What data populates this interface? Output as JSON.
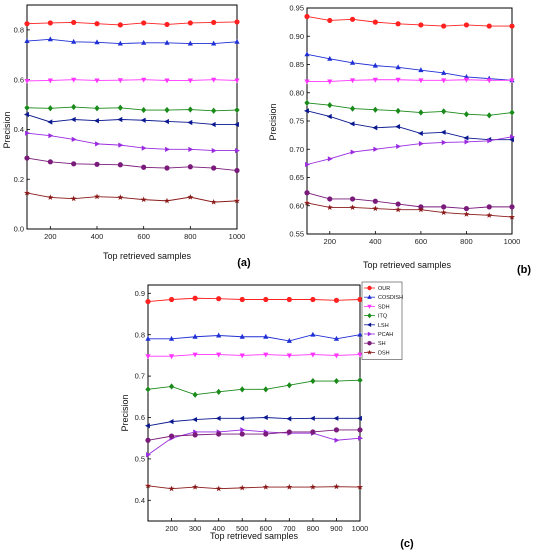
{
  "chart_data": [
    {
      "id": "a",
      "type": "line",
      "panel_label": "(a)",
      "xlabel": "Top retrieved samples",
      "ylabel": "Precision",
      "xlim": [
        100,
        1000
      ],
      "ylim": [
        0.0,
        0.9
      ],
      "x_ticks": [
        200,
        400,
        600,
        800,
        1000
      ],
      "y_ticks": [
        0.0,
        0.2,
        0.4,
        0.6,
        0.8
      ],
      "x_tick_labels": [
        "200",
        "400",
        "600",
        "800",
        "1000"
      ],
      "y_tick_labels": [
        "0.0",
        "0.2",
        "0.4",
        "0.6",
        "0.8"
      ],
      "x": [
        100,
        200,
        300,
        400,
        500,
        600,
        700,
        800,
        900,
        1000
      ],
      "series": [
        {
          "key": "OUR",
          "values": [
            0.825,
            0.828,
            0.83,
            0.825,
            0.82,
            0.828,
            0.822,
            0.828,
            0.83,
            0.832
          ]
        },
        {
          "key": "COSDISH",
          "values": [
            0.755,
            0.762,
            0.752,
            0.75,
            0.745,
            0.748,
            0.748,
            0.745,
            0.745,
            0.752
          ]
        },
        {
          "key": "SDH",
          "values": [
            0.595,
            0.597,
            0.6,
            0.597,
            0.598,
            0.6,
            0.597,
            0.597,
            0.6,
            0.597
          ]
        },
        {
          "key": "ITQ",
          "values": [
            0.487,
            0.485,
            0.49,
            0.485,
            0.487,
            0.478,
            0.478,
            0.48,
            0.475,
            0.478
          ]
        },
        {
          "key": "LSH",
          "values": [
            0.46,
            0.43,
            0.44,
            0.435,
            0.44,
            0.437,
            0.432,
            0.428,
            0.42,
            0.42
          ]
        },
        {
          "key": "PCAH",
          "values": [
            0.385,
            0.375,
            0.36,
            0.342,
            0.337,
            0.325,
            0.32,
            0.32,
            0.315,
            0.315
          ]
        },
        {
          "key": "SH",
          "values": [
            0.285,
            0.27,
            0.262,
            0.26,
            0.258,
            0.248,
            0.245,
            0.25,
            0.245,
            0.235
          ]
        },
        {
          "key": "DSH",
          "values": [
            0.145,
            0.127,
            0.122,
            0.13,
            0.127,
            0.118,
            0.113,
            0.128,
            0.108,
            0.113
          ]
        }
      ]
    },
    {
      "id": "b",
      "type": "line",
      "panel_label": "(b)",
      "xlabel": "Top retrieved samples",
      "ylabel": "Precision",
      "xlim": [
        100,
        1000
      ],
      "ylim": [
        0.55,
        0.95
      ],
      "x_ticks": [
        200,
        400,
        600,
        800,
        1000
      ],
      "y_ticks": [
        0.55,
        0.6,
        0.65,
        0.7,
        0.75,
        0.8,
        0.85,
        0.9,
        0.95
      ],
      "x_tick_labels": [
        "200",
        "400",
        "600",
        "800",
        "1000"
      ],
      "y_tick_labels": [
        "0.55",
        "0.60",
        "0.65",
        "0.70",
        "0.75",
        "0.80",
        "0.85",
        "0.90",
        "0.95"
      ],
      "x": [
        100,
        200,
        300,
        400,
        500,
        600,
        700,
        800,
        900,
        1000
      ],
      "series": [
        {
          "key": "OUR",
          "values": [
            0.935,
            0.928,
            0.93,
            0.925,
            0.922,
            0.92,
            0.918,
            0.92,
            0.918,
            0.918
          ]
        },
        {
          "key": "COSDISH",
          "values": [
            0.868,
            0.86,
            0.853,
            0.848,
            0.845,
            0.84,
            0.835,
            0.828,
            0.825,
            0.822
          ]
        },
        {
          "key": "SDH",
          "values": [
            0.82,
            0.82,
            0.822,
            0.823,
            0.823,
            0.822,
            0.822,
            0.823,
            0.822,
            0.822
          ]
        },
        {
          "key": "ITQ",
          "values": [
            0.782,
            0.778,
            0.772,
            0.77,
            0.768,
            0.765,
            0.767,
            0.762,
            0.76,
            0.765
          ]
        },
        {
          "key": "LSH",
          "values": [
            0.768,
            0.758,
            0.745,
            0.738,
            0.74,
            0.728,
            0.73,
            0.72,
            0.717,
            0.717
          ]
        },
        {
          "key": "PCAH",
          "values": [
            0.673,
            0.683,
            0.695,
            0.7,
            0.705,
            0.71,
            0.712,
            0.713,
            0.715,
            0.722
          ]
        },
        {
          "key": "SH",
          "values": [
            0.623,
            0.612,
            0.612,
            0.608,
            0.603,
            0.598,
            0.598,
            0.595,
            0.598,
            0.598
          ]
        },
        {
          "key": "DSH",
          "values": [
            0.605,
            0.597,
            0.597,
            0.595,
            0.593,
            0.593,
            0.588,
            0.585,
            0.583,
            0.58
          ]
        }
      ]
    },
    {
      "id": "c",
      "type": "line",
      "panel_label": "(c)",
      "xlabel": "Top retrieved samples",
      "ylabel": "Precision",
      "xlim": [
        100,
        1000
      ],
      "ylim": [
        0.35,
        0.92
      ],
      "x_ticks": [
        200,
        300,
        400,
        500,
        600,
        700,
        800,
        900,
        1000
      ],
      "y_ticks": [
        0.4,
        0.5,
        0.6,
        0.7,
        0.8,
        0.9
      ],
      "x_tick_labels": [
        "200",
        "300",
        "400",
        "500",
        "600",
        "700",
        "800",
        "900",
        "1000"
      ],
      "y_tick_labels": [
        "0.4",
        "0.5",
        "0.6",
        "0.7",
        "0.8",
        "0.9"
      ],
      "x": [
        100,
        200,
        300,
        400,
        500,
        600,
        700,
        800,
        900,
        1000
      ],
      "legend": {
        "placement": "top-right"
      },
      "series": [
        {
          "key": "OUR",
          "name": "OUR",
          "values": [
            0.88,
            0.885,
            0.888,
            0.887,
            0.885,
            0.885,
            0.885,
            0.885,
            0.883,
            0.885
          ]
        },
        {
          "key": "COSDISH",
          "name": "COSDISH",
          "values": [
            0.79,
            0.79,
            0.795,
            0.798,
            0.795,
            0.795,
            0.785,
            0.8,
            0.79,
            0.8
          ]
        },
        {
          "key": "SDH",
          "name": "SDH",
          "values": [
            0.748,
            0.748,
            0.752,
            0.752,
            0.75,
            0.752,
            0.75,
            0.752,
            0.75,
            0.752
          ]
        },
        {
          "key": "ITQ",
          "name": "ITQ",
          "values": [
            0.668,
            0.675,
            0.655,
            0.662,
            0.668,
            0.668,
            0.678,
            0.688,
            0.688,
            0.69
          ]
        },
        {
          "key": "LSH",
          "name": "LSH",
          "values": [
            0.58,
            0.59,
            0.595,
            0.598,
            0.598,
            0.6,
            0.597,
            0.598,
            0.598,
            0.598
          ]
        },
        {
          "key": "PCAH",
          "name": "PCAH",
          "values": [
            0.51,
            0.55,
            0.565,
            0.565,
            0.57,
            0.565,
            0.562,
            0.562,
            0.545,
            0.55
          ]
        },
        {
          "key": "SH",
          "name": "SH",
          "values": [
            0.545,
            0.555,
            0.558,
            0.56,
            0.56,
            0.56,
            0.565,
            0.565,
            0.57,
            0.57
          ]
        },
        {
          "key": "DSH",
          "name": "DSH",
          "values": [
            0.435,
            0.428,
            0.432,
            0.428,
            0.43,
            0.432,
            0.432,
            0.432,
            0.433,
            0.432
          ]
        }
      ]
    }
  ],
  "series_styles": {
    "OUR": {
      "color": "#ff2020",
      "marker": "circle"
    },
    "COSDISH": {
      "color": "#1f2fd6",
      "marker": "triangle-up"
    },
    "SDH": {
      "color": "#ff33ff",
      "marker": "triangle-down"
    },
    "ITQ": {
      "color": "#1a8a1a",
      "marker": "diamond"
    },
    "LSH": {
      "color": "#0a1890",
      "marker": "triangle-left"
    },
    "PCAH": {
      "color": "#9a2be0",
      "marker": "triangle-right"
    },
    "SH": {
      "color": "#7a1a7a",
      "marker": "circle"
    },
    "DSH": {
      "color": "#8b1a1a",
      "marker": "star"
    }
  }
}
